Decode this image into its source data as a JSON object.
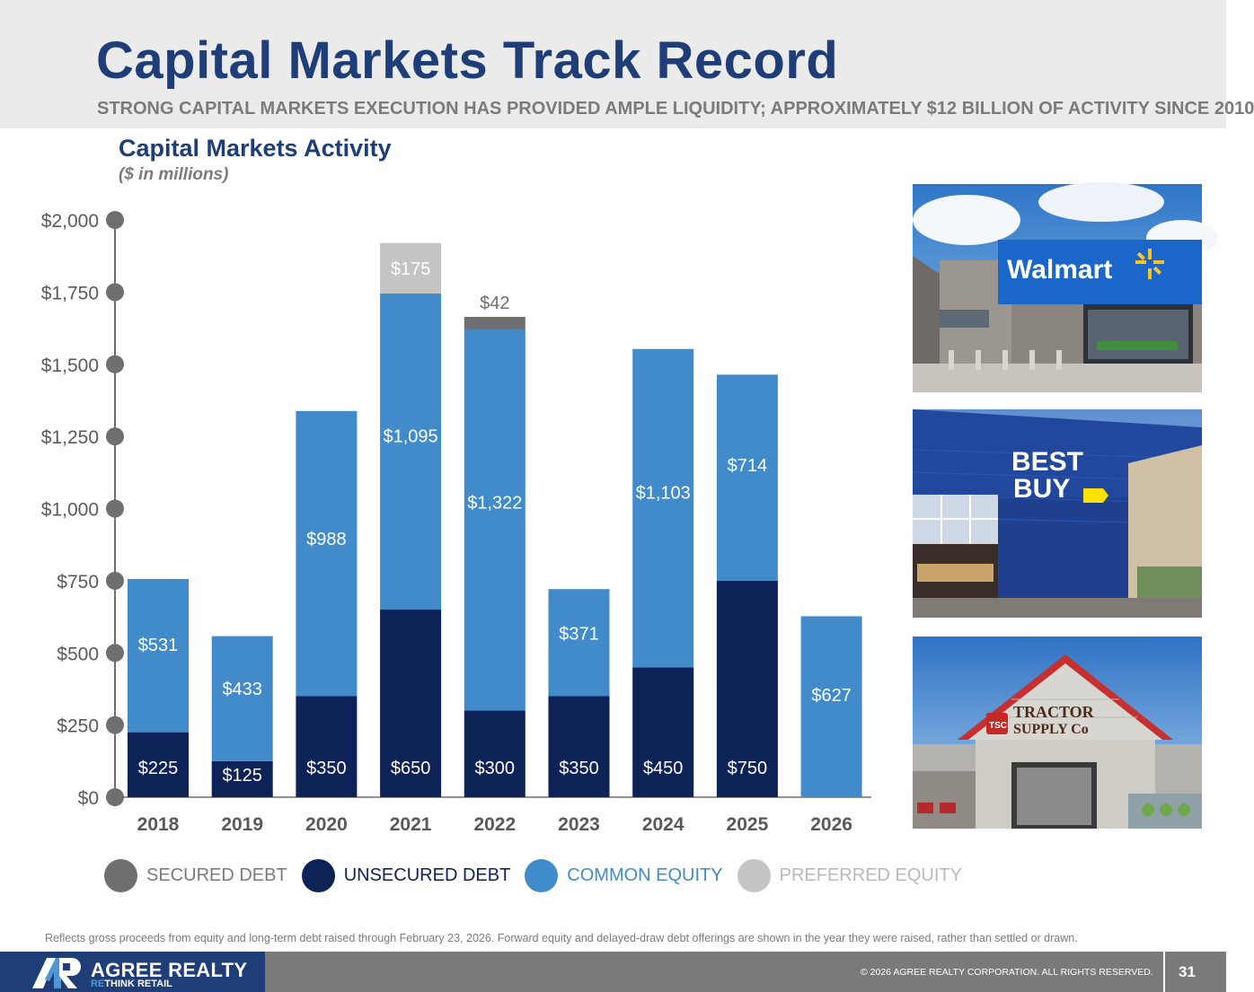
{
  "header": {
    "title": "Capital Markets Track Record",
    "subtitle": "STRONG CAPITAL MARKETS EXECUTION HAS PROVIDED AMPLE LIQUIDITY; APPROXIMATELY $12 BILLION OF ACTIVITY SINCE 2010"
  },
  "chart_data": {
    "type": "bar",
    "stacked": true,
    "title": "Capital Markets Activity",
    "subtitle": "($ in millions)",
    "categories": [
      "2018",
      "2019",
      "2020",
      "2021",
      "2022",
      "2023",
      "2024",
      "2025",
      "2026"
    ],
    "series": [
      {
        "name": "SECURED DEBT",
        "color": "#6f6f6f",
        "values": [
          0,
          0,
          0,
          0,
          0,
          0,
          0,
          0,
          0
        ]
      },
      {
        "name": "UNSECURED DEBT",
        "color": "#0d2257",
        "values": [
          225,
          125,
          350,
          650,
          300,
          350,
          450,
          750,
          0
        ]
      },
      {
        "name": "COMMON EQUITY",
        "color": "#428bcb",
        "values": [
          531,
          433,
          988,
          1095,
          1322,
          371,
          1103,
          714,
          627
        ]
      },
      {
        "name": "PREFERRED EQUITY",
        "color": "#c4c4c4",
        "values": [
          0,
          0,
          0,
          175,
          0,
          0,
          0,
          0,
          0
        ]
      }
    ],
    "data_labels": [
      [
        "",
        "",
        "",
        "",
        "",
        "",
        "",
        "",
        ""
      ],
      [
        "$225",
        "$125",
        "$350",
        "$650",
        "$300",
        "$350",
        "$450",
        "$750",
        ""
      ],
      [
        "$531",
        "$433",
        "$988",
        "$1,095",
        "$1,322",
        "$371",
        "$1,103",
        "$714",
        "$627"
      ],
      [
        "",
        "",
        "",
        "$175",
        "",
        "",
        "",
        "",
        ""
      ]
    ],
    "extra_segments": [
      {
        "category": "2022",
        "value": 42,
        "label": "$42",
        "color": "#6f6f6f"
      }
    ],
    "yticks": [
      0,
      250,
      500,
      750,
      1000,
      1250,
      1500,
      1750,
      2000
    ],
    "ytick_labels": [
      "$0",
      "$250",
      "$500",
      "$750",
      "$1,000",
      "$1,250",
      "$1,500",
      "$1,750",
      "$2,000"
    ],
    "ylim": [
      0,
      2000
    ],
    "legend_position": "bottom-left",
    "grid": false
  },
  "legend": [
    {
      "label": "SECURED DEBT",
      "color": "#6f6f6f",
      "text_color": "#7b7b7b"
    },
    {
      "label": "UNSECURED DEBT",
      "color": "#0d2257",
      "text_color": "#0d2257"
    },
    {
      "label": "COMMON EQUITY",
      "color": "#428bcb",
      "text_color": "#428bcb"
    },
    {
      "label": "PREFERRED EQUITY",
      "color": "#c4c4c4",
      "text_color": "#b9b9b9"
    }
  ],
  "photos": {
    "walmart_sign": "Walmart",
    "bestbuy_sign_1": "BEST",
    "bestbuy_sign_2": "BUY",
    "tractor_badge": "TSC",
    "tractor_sign_1": "TRACTOR",
    "tractor_sign_2": "SUPPLY Co"
  },
  "footnote": "Reflects gross proceeds from equity and long-term debt raised through February 23, 2026. Forward equity and delayed-draw debt offerings are shown in the year they were raised, rather than settled or drawn.",
  "footer": {
    "company_name": "AGREE REALTY",
    "tagline_re": "RE",
    "tagline_think": "THINK ",
    "tagline_retail": "RETAIL",
    "copyright": "© 2026 AGREE REALTY CORPORATION. ALL RIGHTS RESERVED.",
    "page_number": "31"
  }
}
